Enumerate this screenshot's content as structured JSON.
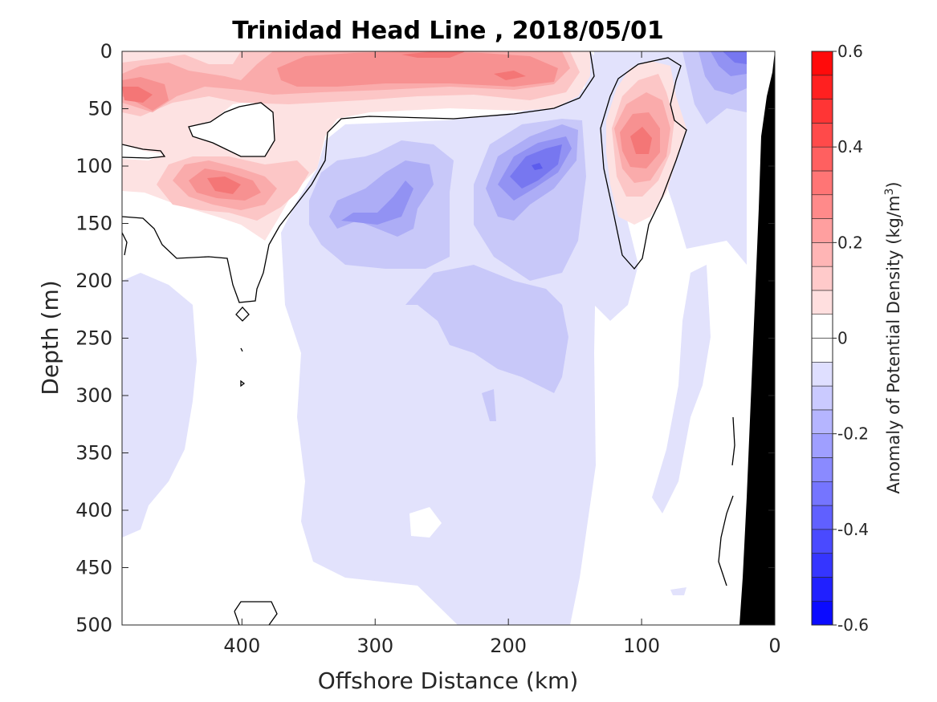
{
  "chart_data": {
    "type": "heatmap",
    "title": "Trinidad Head Line , 2018/05/01",
    "xlabel": "Offshore Distance (km)",
    "ylabel": "Depth (m)",
    "xlim": [
      490,
      0
    ],
    "ylim": [
      0,
      500
    ],
    "x_reversed": true,
    "y_reversed": true,
    "xticks": [
      400,
      300,
      200,
      100,
      0
    ],
    "yticks": [
      0,
      50,
      100,
      150,
      200,
      250,
      300,
      350,
      400,
      450,
      500
    ],
    "colorbar": {
      "label": "Anomaly of Potential Density (kg/m",
      "label_superscript": "3",
      "label_close": ")",
      "range": [
        -0.6,
        0.6
      ],
      "step": 0.05,
      "ticks": [
        0.6,
        0.4,
        0.2,
        0,
        -0.2,
        -0.4,
        -0.6
      ],
      "tick_labels": [
        "0.6",
        "0.4",
        "0.2",
        "0",
        "-0.2",
        "-0.4",
        "-0.6"
      ],
      "colormap": "blue-white-red",
      "negative_color": "#0000ff",
      "positive_color": "#ff0000"
    },
    "bathymetry_color": "#000000",
    "zero_contour": true,
    "anomaly_features": [
      {
        "x": 350,
        "depth": 15,
        "value": 0.2
      },
      {
        "x": 300,
        "depth": 20,
        "value": 0.2
      },
      {
        "x": 255,
        "depth": 5,
        "value": 0.25
      },
      {
        "x": 200,
        "depth": 20,
        "value": 0.25
      },
      {
        "x": 475,
        "depth": 40,
        "value": 0.3
      },
      {
        "x": 415,
        "depth": 115,
        "value": 0.3
      },
      {
        "x": 105,
        "depth": 80,
        "value": 0.25
      },
      {
        "x": 165,
        "depth": 100,
        "value": -0.3
      },
      {
        "x": 290,
        "depth": 120,
        "value": -0.2
      },
      {
        "x": 200,
        "depth": 145,
        "value": -0.2
      },
      {
        "x": 40,
        "depth": 5,
        "value": -0.3
      },
      {
        "x": 40,
        "depth": 40,
        "value": -0.15
      }
    ]
  }
}
